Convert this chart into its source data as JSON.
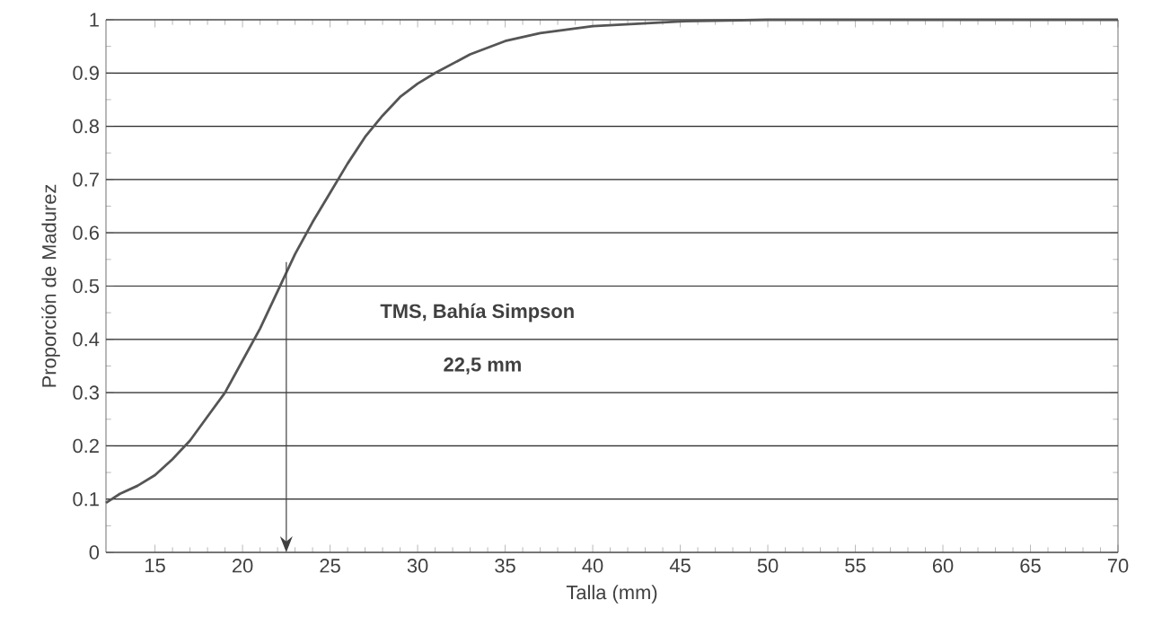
{
  "chart_data": {
    "type": "line",
    "xlabel": "Talla (mm)",
    "ylabel": "Proporción de Madurez",
    "x": [
      12.2,
      13,
      14,
      15,
      16,
      17,
      18,
      19,
      20,
      21,
      22,
      23,
      24,
      25,
      26,
      27,
      28,
      29,
      30,
      31,
      33,
      35,
      37,
      40,
      45,
      50,
      60,
      70
    ],
    "series": [
      {
        "color": "#555555",
        "values": [
          0.093,
          0.11,
          0.125,
          0.145,
          0.175,
          0.21,
          0.255,
          0.3,
          0.36,
          0.42,
          0.49,
          0.56,
          0.62,
          0.675,
          0.73,
          0.78,
          0.82,
          0.855,
          0.88,
          0.9,
          0.935,
          0.96,
          0.975,
          0.988,
          0.997,
          1.0,
          1.0,
          1.0
        ]
      }
    ],
    "xlim": [
      12.2,
      70
    ],
    "ylim": [
      0,
      1
    ],
    "xticks": [
      15,
      20,
      25,
      30,
      35,
      40,
      45,
      50,
      55,
      60,
      65,
      70
    ],
    "yticks": [
      0,
      0.1,
      0.2,
      0.3,
      0.4,
      0.5,
      0.6,
      0.7,
      0.8,
      0.9,
      1
    ],
    "grid": "y",
    "marker": "none",
    "line_style": "solid",
    "ref_lines": [
      {
        "axis": "x",
        "value": 22.5
      }
    ],
    "annotations": [
      "TMS, Bahía Simpson",
      "22,5 mm"
    ]
  }
}
